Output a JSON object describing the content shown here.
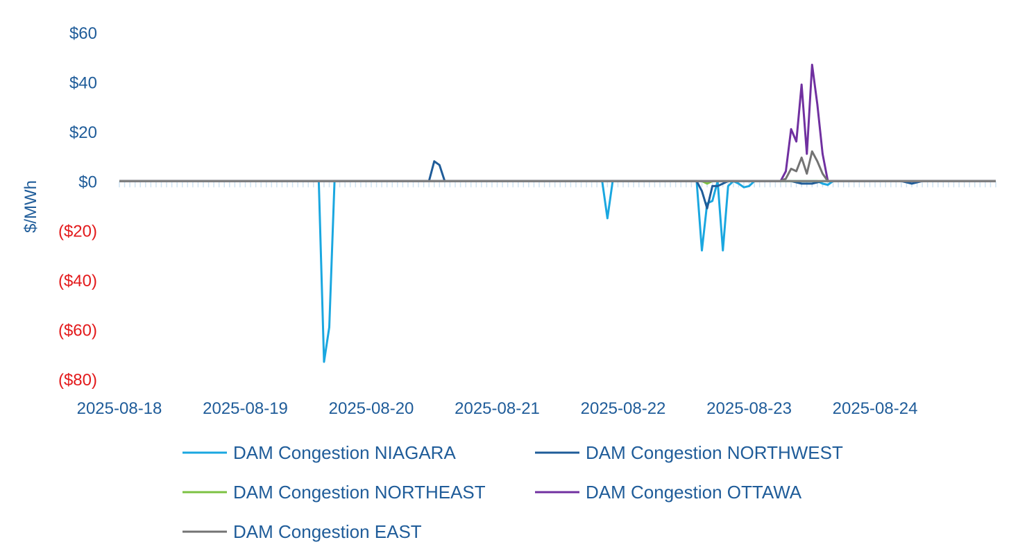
{
  "chart_data": {
    "type": "line",
    "ylabel": "$/MWh",
    "xlabel": "",
    "title": "",
    "ylim": [
      -80,
      60
    ],
    "yticks": [
      {
        "value": 60,
        "label": "$60"
      },
      {
        "value": 40,
        "label": "$40"
      },
      {
        "value": 20,
        "label": "$20"
      },
      {
        "value": 0,
        "label": "$0"
      },
      {
        "value": -20,
        "label": "($20)"
      },
      {
        "value": -40,
        "label": "($40)"
      },
      {
        "value": -60,
        "label": "($60)"
      },
      {
        "value": -80,
        "label": "($80)"
      }
    ],
    "xticks": [
      {
        "value": "2025-08-18 00:00",
        "label": "2025-08-18"
      },
      {
        "value": "2025-08-19 00:00",
        "label": "2025-08-19"
      },
      {
        "value": "2025-08-20 00:00",
        "label": "2025-08-20"
      },
      {
        "value": "2025-08-21 00:00",
        "label": "2025-08-21"
      },
      {
        "value": "2025-08-22 00:00",
        "label": "2025-08-22"
      },
      {
        "value": "2025-08-23 00:00",
        "label": "2025-08-23"
      },
      {
        "value": "2025-08-24 00:00",
        "label": "2025-08-24"
      }
    ],
    "xlim": [
      "2025-08-18 00:00",
      "2025-08-24 23:00"
    ],
    "grid": false,
    "legend_position": "bottom",
    "colors": {
      "axis_text": "#1f5c99",
      "negative_text": "#e31a1c",
      "zero_line": "#808080"
    },
    "series": [
      {
        "name": "DAM Congestion NIAGARA",
        "color": "#1aa7e0",
        "points": [
          {
            "x": "2025-08-18 00:00",
            "y": 0
          },
          {
            "x": "2025-08-19 14:00",
            "y": 0
          },
          {
            "x": "2025-08-19 15:00",
            "y": -73
          },
          {
            "x": "2025-08-19 16:00",
            "y": -59
          },
          {
            "x": "2025-08-19 17:00",
            "y": 0
          },
          {
            "x": "2025-08-21 20:00",
            "y": 0
          },
          {
            "x": "2025-08-21 21:00",
            "y": -15
          },
          {
            "x": "2025-08-21 22:00",
            "y": 0
          },
          {
            "x": "2025-08-22 14:00",
            "y": 0
          },
          {
            "x": "2025-08-22 15:00",
            "y": -28
          },
          {
            "x": "2025-08-22 16:00",
            "y": -9
          },
          {
            "x": "2025-08-22 17:00",
            "y": -8
          },
          {
            "x": "2025-08-22 18:00",
            "y": 0
          },
          {
            "x": "2025-08-22 19:00",
            "y": -28
          },
          {
            "x": "2025-08-22 20:00",
            "y": -2
          },
          {
            "x": "2025-08-22 21:00",
            "y": 0
          },
          {
            "x": "2025-08-22 22:00",
            "y": -1
          },
          {
            "x": "2025-08-22 23:00",
            "y": -2.5
          },
          {
            "x": "2025-08-23 00:00",
            "y": -2
          },
          {
            "x": "2025-08-23 01:00",
            "y": 0
          },
          {
            "x": "2025-08-23 13:00",
            "y": 0
          },
          {
            "x": "2025-08-23 14:00",
            "y": -1
          },
          {
            "x": "2025-08-23 15:00",
            "y": -1.5
          },
          {
            "x": "2025-08-23 16:00",
            "y": 0
          },
          {
            "x": "2025-08-24 23:00",
            "y": 0
          }
        ]
      },
      {
        "name": "DAM Congestion NORTHWEST",
        "color": "#1f5c99",
        "points": [
          {
            "x": "2025-08-18 00:00",
            "y": 0
          },
          {
            "x": "2025-08-20 11:00",
            "y": 0
          },
          {
            "x": "2025-08-20 12:00",
            "y": 8
          },
          {
            "x": "2025-08-20 13:00",
            "y": 6.5
          },
          {
            "x": "2025-08-20 14:00",
            "y": 0
          },
          {
            "x": "2025-08-22 14:00",
            "y": 0
          },
          {
            "x": "2025-08-22 15:00",
            "y": -4
          },
          {
            "x": "2025-08-22 16:00",
            "y": -11
          },
          {
            "x": "2025-08-22 17:00",
            "y": -2
          },
          {
            "x": "2025-08-22 18:00",
            "y": -2
          },
          {
            "x": "2025-08-22 19:00",
            "y": -1
          },
          {
            "x": "2025-08-22 20:00",
            "y": 0
          },
          {
            "x": "2025-08-23 08:00",
            "y": 0
          },
          {
            "x": "2025-08-23 09:00",
            "y": -0.5
          },
          {
            "x": "2025-08-23 10:00",
            "y": -1
          },
          {
            "x": "2025-08-23 11:00",
            "y": -1
          },
          {
            "x": "2025-08-23 12:00",
            "y": -1
          },
          {
            "x": "2025-08-23 13:00",
            "y": -0.5
          },
          {
            "x": "2025-08-23 14:00",
            "y": 0
          },
          {
            "x": "2025-08-24 05:00",
            "y": 0
          },
          {
            "x": "2025-08-24 06:00",
            "y": -0.5
          },
          {
            "x": "2025-08-24 07:00",
            "y": -1
          },
          {
            "x": "2025-08-24 08:00",
            "y": -0.5
          },
          {
            "x": "2025-08-24 09:00",
            "y": 0
          },
          {
            "x": "2025-08-24 23:00",
            "y": 0
          }
        ]
      },
      {
        "name": "DAM Congestion NORTHEAST",
        "color": "#7cc242",
        "points": [
          {
            "x": "2025-08-18 00:00",
            "y": 0
          },
          {
            "x": "2025-08-22 15:00",
            "y": 0
          },
          {
            "x": "2025-08-22 16:00",
            "y": -1
          },
          {
            "x": "2025-08-22 17:00",
            "y": 0
          },
          {
            "x": "2025-08-24 23:00",
            "y": 0
          }
        ]
      },
      {
        "name": "DAM Congestion OTTAWA",
        "color": "#7030a0",
        "points": [
          {
            "x": "2025-08-18 00:00",
            "y": 0
          },
          {
            "x": "2025-08-23 06:00",
            "y": 0
          },
          {
            "x": "2025-08-23 07:00",
            "y": 4
          },
          {
            "x": "2025-08-23 08:00",
            "y": 21
          },
          {
            "x": "2025-08-23 09:00",
            "y": 16
          },
          {
            "x": "2025-08-23 10:00",
            "y": 39
          },
          {
            "x": "2025-08-23 11:00",
            "y": 11
          },
          {
            "x": "2025-08-23 12:00",
            "y": 47
          },
          {
            "x": "2025-08-23 13:00",
            "y": 31
          },
          {
            "x": "2025-08-23 14:00",
            "y": 11
          },
          {
            "x": "2025-08-23 15:00",
            "y": 0
          },
          {
            "x": "2025-08-24 23:00",
            "y": 0
          }
        ]
      },
      {
        "name": "DAM Congestion EAST",
        "color": "#737373",
        "points": [
          {
            "x": "2025-08-18 00:00",
            "y": 0
          },
          {
            "x": "2025-08-23 06:00",
            "y": 0
          },
          {
            "x": "2025-08-23 07:00",
            "y": 1
          },
          {
            "x": "2025-08-23 08:00",
            "y": 5
          },
          {
            "x": "2025-08-23 09:00",
            "y": 4
          },
          {
            "x": "2025-08-23 10:00",
            "y": 9.5
          },
          {
            "x": "2025-08-23 11:00",
            "y": 3
          },
          {
            "x": "2025-08-23 12:00",
            "y": 12
          },
          {
            "x": "2025-08-23 13:00",
            "y": 8
          },
          {
            "x": "2025-08-23 14:00",
            "y": 3
          },
          {
            "x": "2025-08-23 15:00",
            "y": 0
          },
          {
            "x": "2025-08-24 23:00",
            "y": 0
          }
        ]
      }
    ]
  }
}
